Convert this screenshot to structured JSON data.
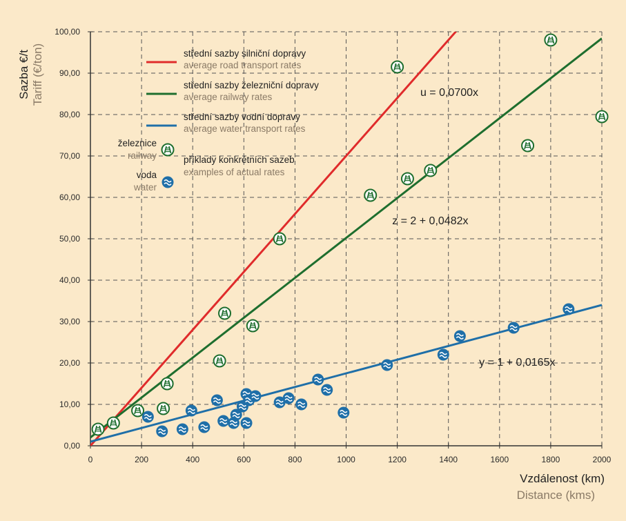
{
  "chart_data": {
    "type": "scatter",
    "ylabel_cs": "Sazba €/t",
    "ylabel_en": "Tariff (€/ton)",
    "xlabel_cs": "Vzdálenost (km)",
    "xlabel_en": "Distance (kms)",
    "xlim": [
      0,
      2000
    ],
    "ylim": [
      0,
      100
    ],
    "x_ticks": [
      "0",
      "200",
      "400",
      "600",
      "800",
      "1000",
      "1200",
      "1400",
      "1600",
      "1800",
      "2000"
    ],
    "y_ticks": [
      "0,00",
      "10,00",
      "20,00",
      "30,00",
      "40,00",
      "50,00",
      "60,00",
      "70,00",
      "80,00",
      "90,00",
      "100,00"
    ],
    "grid": true,
    "lines": [
      {
        "legend_cs": "střední sazby silniční dopravy",
        "legend_en": "average road transport rates",
        "color": "#e02b2b",
        "intercept": 0,
        "slope": 0.07,
        "equation": "u = 0,0700x",
        "label_x": 1290,
        "label_y": 84.5
      },
      {
        "legend_cs": "střední sazby železniční dopravy",
        "legend_en": "average railway rates",
        "color": "#1e6e2e",
        "intercept": 2,
        "slope": 0.0482,
        "equation": "z = 2 + 0,0482x",
        "label_x": 1180,
        "label_y": 53.5
      },
      {
        "legend_cs": "střední sazby vodní dopravy",
        "legend_en": "average water transport rates",
        "color": "#1f6fa8",
        "intercept": 1,
        "slope": 0.0165,
        "equation": "y = 1 + 0,0165x",
        "label_x": 1520,
        "label_y": 19.3
      }
    ],
    "markers_legend": {
      "railway_cs": "železnice",
      "railway_en": "railway",
      "water_cs": "voda",
      "water_en": "water",
      "examples_cs": "příklady konkrétních sazeb",
      "examples_en": "examples of actual rates"
    },
    "railway_points": [
      [
        30,
        4
      ],
      [
        90,
        5.5
      ],
      [
        185,
        8.5
      ],
      [
        285,
        9
      ],
      [
        300,
        15
      ],
      [
        505,
        20.5
      ],
      [
        525,
        32
      ],
      [
        635,
        29
      ],
      [
        740,
        50
      ],
      [
        1095,
        60.5
      ],
      [
        1200,
        91.5
      ],
      [
        1240,
        64.5
      ],
      [
        1330,
        66.5
      ],
      [
        1710,
        72.5
      ],
      [
        1800,
        98
      ],
      [
        2000,
        79.5
      ]
    ],
    "water_points": [
      [
        225,
        7
      ],
      [
        280,
        3.5
      ],
      [
        360,
        4
      ],
      [
        395,
        8.5
      ],
      [
        445,
        4.5
      ],
      [
        495,
        11
      ],
      [
        520,
        6
      ],
      [
        560,
        5.5
      ],
      [
        570,
        7.5
      ],
      [
        595,
        9.5
      ],
      [
        610,
        5.5
      ],
      [
        610,
        12.5
      ],
      [
        620,
        11
      ],
      [
        645,
        12
      ],
      [
        740,
        10.5
      ],
      [
        775,
        11.5
      ],
      [
        825,
        10
      ],
      [
        890,
        16
      ],
      [
        925,
        13.5
      ],
      [
        990,
        8
      ],
      [
        1160,
        19.5
      ],
      [
        1380,
        22
      ],
      [
        1445,
        26.5
      ],
      [
        1655,
        28.5
      ],
      [
        1870,
        33
      ]
    ]
  },
  "colors": {
    "background": "#fbe9c9",
    "marker_green": "#1e6e2e",
    "marker_blue": "#1f6fa8"
  }
}
